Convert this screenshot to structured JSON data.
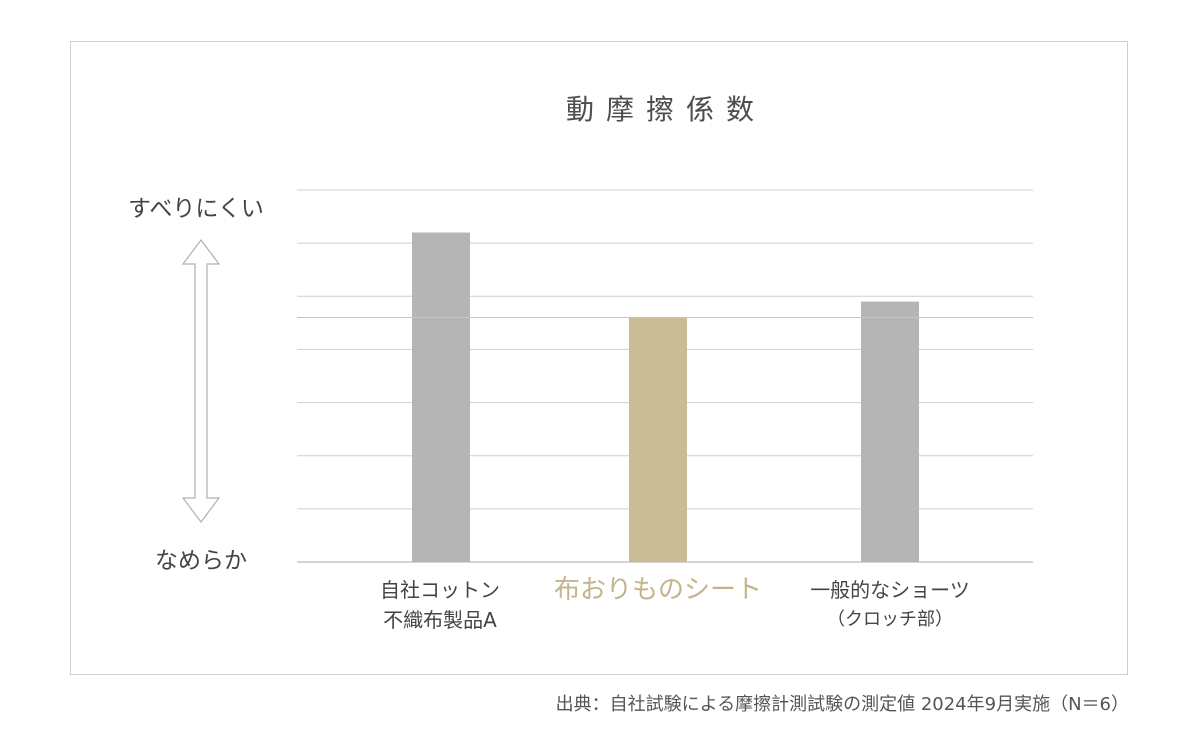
{
  "chart_data": {
    "type": "bar",
    "title": "動摩擦係数",
    "categories": [
      "自社コットン不織布製品A",
      "布おりものシート",
      "一般的なショーツ（クロッチ部）"
    ],
    "category_lines": [
      [
        "自社コットン",
        "不織布製品A"
      ],
      [
        "布おりものシート",
        ""
      ],
      [
        "一般的なショーツ",
        "（クロッチ部）"
      ]
    ],
    "values": [
      6.2,
      4.6,
      4.9
    ],
    "ylim": [
      0,
      7
    ],
    "y_gridlines": 7,
    "reference_line": 4.6,
    "ylabel_top": "すべりにくい",
    "ylabel_bottom": "なめらか",
    "highlight_index": 1,
    "grid": true,
    "colors": {
      "bar": "#b5b5b6",
      "highlight": "#c9bc97",
      "highlight_text": "#c4b48e",
      "grid": "#cfcfcf",
      "reference": "#d9bfa5"
    }
  },
  "source": "出典：自社試験による摩擦計測試験の測定値 2024年9月実施（N＝6）"
}
